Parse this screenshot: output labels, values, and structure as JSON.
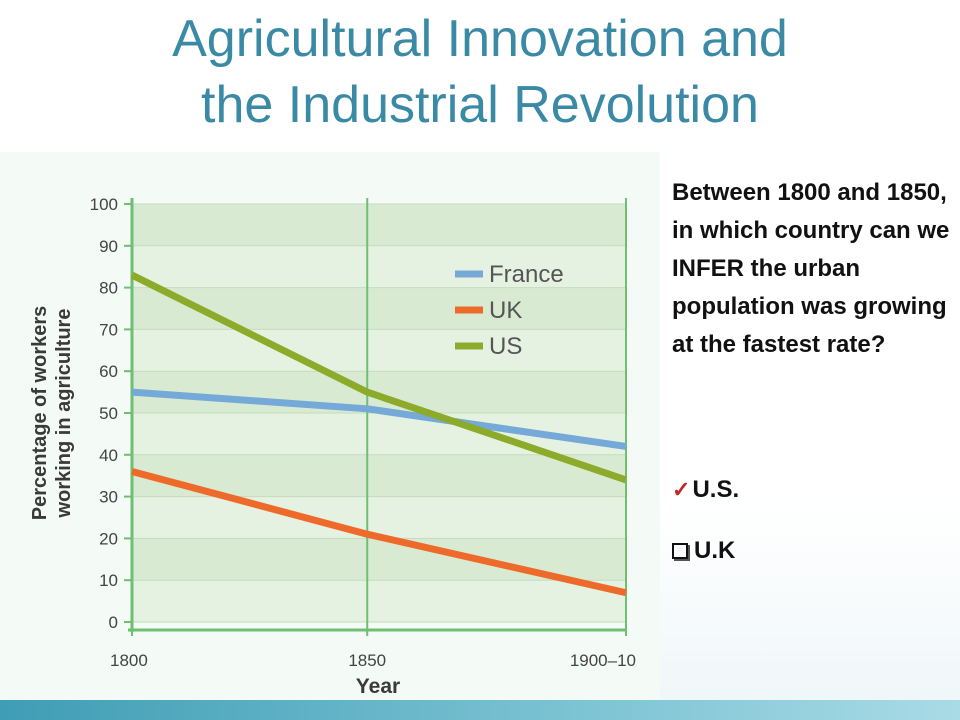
{
  "slide": {
    "title_line1": "Agricultural Innovation and",
    "title_line2": "the Industrial Revolution"
  },
  "question": {
    "text": "Between 1800 and 1850, in which country can we INFER the urban population was growing at the fastest rate?",
    "options": [
      {
        "label": "U.S.",
        "marker": "check-icon",
        "checked": true
      },
      {
        "label": "U.K",
        "marker": "checkbox-icon",
        "checked": false
      }
    ]
  },
  "chart_data": {
    "type": "line",
    "title": "",
    "xlabel": "Year",
    "ylabel": "Percentage of workers working in agriculture",
    "x": [
      1800,
      1850,
      1905
    ],
    "x_tick_labels": [
      "1800",
      "1850",
      "1900–10"
    ],
    "ylim": [
      0,
      100
    ],
    "y_ticks": [
      0,
      10,
      20,
      30,
      40,
      50,
      60,
      70,
      80,
      90,
      100
    ],
    "grid": true,
    "legend_position": "top-right",
    "series": [
      {
        "name": "France",
        "color": "#74a9d8",
        "values": [
          55,
          51,
          42
        ]
      },
      {
        "name": "UK",
        "color": "#ee6a2a",
        "values": [
          36,
          21,
          7
        ]
      },
      {
        "name": "US",
        "color": "#8cab2a",
        "values": [
          83,
          55,
          34
        ]
      }
    ]
  }
}
